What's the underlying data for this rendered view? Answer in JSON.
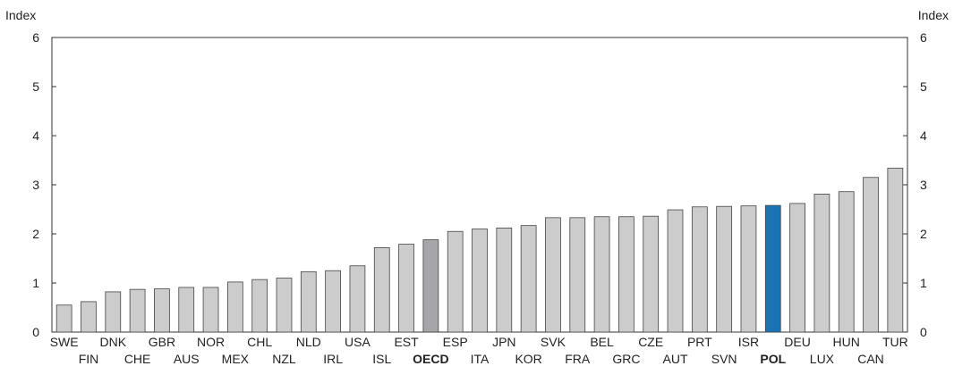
{
  "chart_data": {
    "type": "bar",
    "ylabel_left": "Index",
    "ylabel_right": "Index",
    "ylim": [
      0,
      6
    ],
    "yticks": [
      "0",
      "1",
      "2",
      "3",
      "4",
      "5",
      "6"
    ],
    "grid": false,
    "legend": "none",
    "categories": [
      "SWE",
      "FIN",
      "DNK",
      "CHE",
      "GBR",
      "AUS",
      "NOR",
      "MEX",
      "CHL",
      "NZL",
      "NLD",
      "IRL",
      "USA",
      "ISL",
      "EST",
      "OECD",
      "ESP",
      "ITA",
      "JPN",
      "KOR",
      "SVK",
      "FRA",
      "BEL",
      "GRC",
      "CZE",
      "AUT",
      "PRT",
      "SVN",
      "ISR",
      "POL",
      "DEU",
      "LUX",
      "HUN",
      "CAN",
      "TUR"
    ],
    "values": [
      0.55,
      0.62,
      0.82,
      0.87,
      0.88,
      0.91,
      0.91,
      1.02,
      1.07,
      1.1,
      1.23,
      1.25,
      1.35,
      1.72,
      1.79,
      1.88,
      2.05,
      2.1,
      2.12,
      2.17,
      2.33,
      2.33,
      2.35,
      2.35,
      2.36,
      2.49,
      2.55,
      2.56,
      2.57,
      2.58,
      2.62,
      2.81,
      2.86,
      3.15,
      3.34
    ],
    "highlights": {
      "OECD": "#a6a6aa",
      "POL": "#1a73b5"
    },
    "bold_categories": [
      "OECD",
      "POL"
    ],
    "colors": {
      "bar": "#cccccc",
      "bar_stroke": "#444444",
      "axis": "#333333"
    }
  }
}
